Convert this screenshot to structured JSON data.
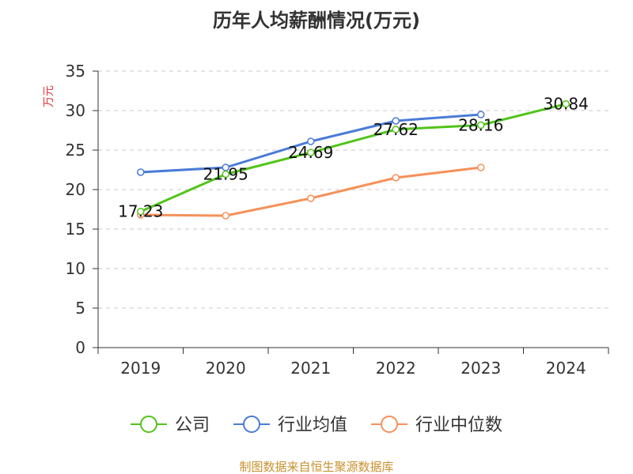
{
  "chart_data": {
    "type": "line",
    "title": "历年人均薪酬情况(万元)",
    "ylabel": "万元",
    "xlabel": "",
    "categories": [
      "2019",
      "2020",
      "2021",
      "2022",
      "2023",
      "2024"
    ],
    "ylim": [
      0,
      35
    ],
    "yticks": [
      0,
      5,
      10,
      15,
      20,
      25,
      30,
      35
    ],
    "grid": true,
    "legend_position": "bottom",
    "series": [
      {
        "name": "公司",
        "color": "#52c41a",
        "values": [
          17.23,
          21.95,
          24.69,
          27.62,
          28.16,
          30.84
        ],
        "labels": [
          "17.23",
          "21.95",
          "24.69",
          "27.62",
          "28.16",
          "30.84"
        ]
      },
      {
        "name": "行业均值",
        "color": "#4a7bd6",
        "values": [
          22.2,
          22.8,
          26.1,
          28.7,
          29.5,
          null
        ]
      },
      {
        "name": "行业中位数",
        "color": "#f5915a",
        "values": [
          16.8,
          16.7,
          18.9,
          21.5,
          22.8,
          null
        ]
      }
    ],
    "ylabel_color": "#e0383e"
  },
  "source_text": "制图数据来自恒生聚源数据库",
  "source_color": "#c8912e"
}
